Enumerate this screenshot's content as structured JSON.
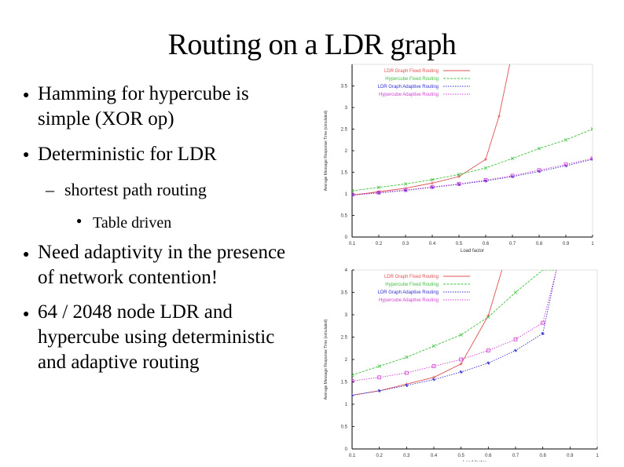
{
  "slide": {
    "title": "Routing on a LDR graph",
    "bullets": [
      "Hamming for hypercube is simple (XOR op)",
      "Deterministic for LDR",
      "shortest path routing",
      "Table driven",
      "Need adaptivity in the presence of network contention!",
      "64 / 2048 node LDR and hypercube using deterministic and adaptive routing"
    ],
    "bullet_lines": {
      "b1": [
        "Hamming for hypercube is",
        "simple (XOR op)"
      ],
      "b2": [
        "Deterministic for LDR"
      ],
      "b3": [
        "shortest path routing"
      ],
      "b4": [
        "Table driven"
      ],
      "b5": [
        "Need adaptivity in the presence",
        "of network contention!"
      ],
      "b6": [
        "64 / 2048 node LDR and",
        "hypercube using deterministic",
        "and adaptive routing"
      ]
    },
    "markers": {
      "round": "●",
      "dash": "–"
    }
  },
  "chart_data": [
    {
      "type": "line",
      "xlabel": "Load factor",
      "ylabel": "Average Message Response Time (simulated)",
      "xlim": [
        0.1,
        1.0
      ],
      "ylim": [
        0,
        4
      ],
      "xticks": [
        "0.1",
        "0.2",
        "0.3",
        "0.4",
        "0.5",
        "0.6",
        "0.7",
        "0.8",
        "0.9",
        "1"
      ],
      "yticks": [
        "0",
        "0.5",
        "1",
        "1.5",
        "2",
        "2.5",
        "3",
        "3.5"
      ],
      "legend_position": "top-right",
      "series": [
        {
          "name": "LDR Graph Fixed Routing",
          "color": "#e05050",
          "marker": "+",
          "x": [
            0.1,
            0.2,
            0.3,
            0.4,
            0.5,
            0.6,
            0.65,
            0.69
          ],
          "y": [
            0.97,
            1.05,
            1.13,
            1.25,
            1.4,
            1.8,
            2.8,
            4.0
          ]
        },
        {
          "name": "Hypercube Fixed Routing",
          "color": "#40c040",
          "marker": "x",
          "x": [
            0.1,
            0.2,
            0.3,
            0.4,
            0.5,
            0.6,
            0.7,
            0.8,
            0.9,
            1.0
          ],
          "y": [
            1.07,
            1.15,
            1.23,
            1.33,
            1.45,
            1.6,
            1.82,
            2.05,
            2.25,
            2.5
          ]
        },
        {
          "name": "LDR Graph Adaptive Routing",
          "color": "#3030d0",
          "marker": "*",
          "x": [
            0.1,
            0.2,
            0.3,
            0.4,
            0.5,
            0.6,
            0.7,
            0.8,
            0.9,
            1.0
          ],
          "y": [
            0.97,
            1.02,
            1.08,
            1.15,
            1.22,
            1.3,
            1.4,
            1.52,
            1.65,
            1.8
          ]
        },
        {
          "name": "Hypercube Adaptive Routing",
          "color": "#d040d0",
          "marker": "square",
          "x": [
            0.1,
            0.2,
            0.3,
            0.4,
            0.5,
            0.6,
            0.7,
            0.8,
            0.9,
            1.0
          ],
          "y": [
            0.98,
            1.03,
            1.09,
            1.16,
            1.23,
            1.32,
            1.42,
            1.55,
            1.68,
            1.82
          ]
        }
      ]
    },
    {
      "type": "line",
      "xlabel": "Load factor",
      "ylabel": "Average Message Response Time (simulated)",
      "xlim": [
        0.1,
        1.0
      ],
      "ylim": [
        0,
        4
      ],
      "xticks": [
        "0.1",
        "0.2",
        "0.3",
        "0.4",
        "0.5",
        "0.6",
        "0.7",
        "0.8",
        "0.9",
        "1"
      ],
      "yticks": [
        "0",
        "0.5",
        "1",
        "1.5",
        "2",
        "2.5",
        "3",
        "3.5",
        "4"
      ],
      "legend_position": "top-right",
      "series": [
        {
          "name": "LDR Graph Fixed Routing",
          "color": "#e05050",
          "marker": "+",
          "x": [
            0.1,
            0.2,
            0.3,
            0.4,
            0.5,
            0.6,
            0.65
          ],
          "y": [
            1.2,
            1.3,
            1.45,
            1.6,
            1.9,
            2.98,
            4.0
          ]
        },
        {
          "name": "Hypercube Fixed Routing",
          "color": "#40c040",
          "marker": "x",
          "x": [
            0.1,
            0.2,
            0.3,
            0.4,
            0.5,
            0.6,
            0.7,
            0.8,
            0.85
          ],
          "y": [
            1.65,
            1.85,
            2.05,
            2.3,
            2.55,
            2.95,
            3.5,
            4.0,
            4.0
          ]
        },
        {
          "name": "LDR Graph Adaptive Routing",
          "color": "#3030d0",
          "marker": "*",
          "x": [
            0.1,
            0.2,
            0.3,
            0.4,
            0.5,
            0.6,
            0.7,
            0.8,
            0.85
          ],
          "y": [
            1.2,
            1.3,
            1.42,
            1.55,
            1.72,
            1.92,
            2.2,
            2.58,
            4.0
          ]
        },
        {
          "name": "Hypercube Adaptive Routing",
          "color": "#d040d0",
          "marker": "square",
          "x": [
            0.1,
            0.2,
            0.3,
            0.4,
            0.5,
            0.6,
            0.7,
            0.8,
            0.85
          ],
          "y": [
            1.52,
            1.6,
            1.7,
            1.85,
            2.0,
            2.2,
            2.45,
            2.82,
            4.0
          ]
        }
      ]
    }
  ]
}
